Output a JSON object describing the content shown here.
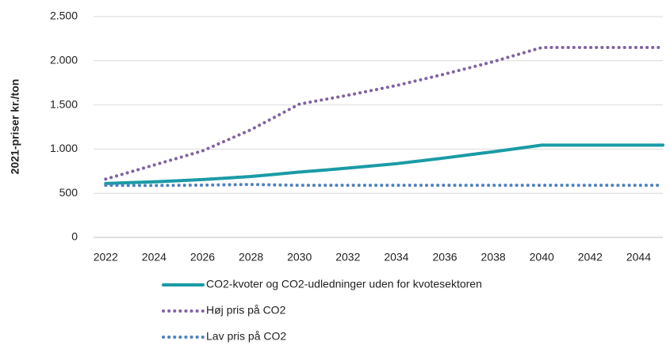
{
  "chart_data": {
    "type": "line",
    "y_label": "2021-priser kr./ton",
    "x": [
      2022,
      2023,
      2024,
      2025,
      2026,
      2027,
      2028,
      2029,
      2030,
      2031,
      2032,
      2033,
      2034,
      2035,
      2036,
      2037,
      2038,
      2039,
      2040,
      2041,
      2042,
      2043,
      2044,
      2045
    ],
    "xlim": [
      2021.5,
      2045
    ],
    "xticks": [
      2022,
      2024,
      2026,
      2028,
      2030,
      2032,
      2034,
      2036,
      2038,
      2040,
      2042,
      2044
    ],
    "ylim": [
      0,
      2500
    ],
    "yticks": [
      0,
      500,
      {
        "value": 1000,
        "label": "1.000"
      },
      {
        "value": 1500,
        "label": "1.500"
      },
      {
        "value": 2000,
        "label": "2.000"
      },
      {
        "value": 2500,
        "label": "2.500"
      }
    ],
    "grid": true,
    "series": [
      {
        "name": "CO2-kvoter og CO2-udledninger uden for kvotesektoren",
        "color": "#1a9ba6",
        "style": "solid",
        "values": [
          610,
          620,
          630,
          642,
          655,
          672,
          690,
          715,
          740,
          762,
          785,
          810,
          835,
          867,
          900,
          935,
          970,
          1007,
          1045,
          1045,
          1045,
          1045,
          1045,
          1045
        ]
      },
      {
        "name": "Høj pris på CO2",
        "color": "#8064a2",
        "style": "dotted",
        "values": [
          660,
          740,
          820,
          900,
          980,
          1100,
          1220,
          1365,
          1510,
          1560,
          1610,
          1665,
          1720,
          1785,
          1850,
          1920,
          1990,
          2070,
          2150,
          2150,
          2150,
          2150,
          2150,
          2150
        ]
      },
      {
        "name": "Lav pris på CO2",
        "color": "#4f81bd",
        "style": "dotted",
        "values": [
          590,
          588,
          588,
          590,
          592,
          596,
          600,
          595,
          590,
          590,
          590,
          590,
          590,
          590,
          590,
          590,
          590,
          590,
          590,
          590,
          590,
          590,
          590,
          590
        ]
      }
    ]
  }
}
